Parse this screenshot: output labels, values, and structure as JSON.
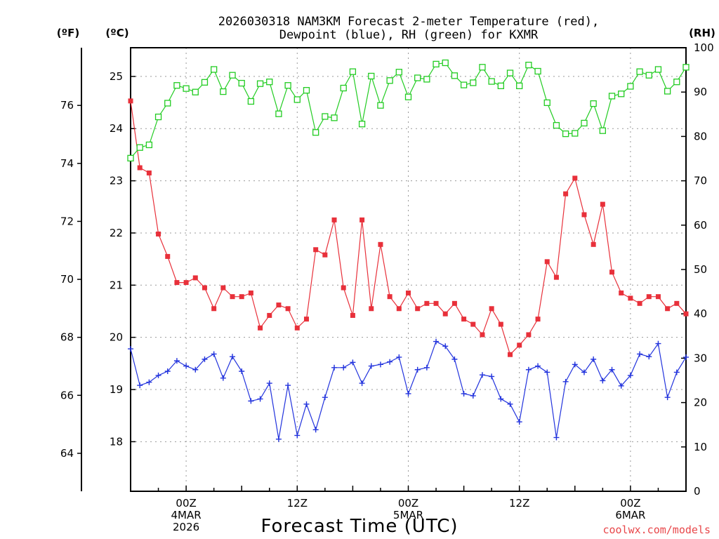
{
  "chart_data": {
    "type": "line",
    "title": "2026030318 NAM3KM Forecast 2-meter Temperature (red), Dewpoint (blue), RH (green) for KXMR",
    "title_lines": [
      "2026030318 NAM3KM Forecast 2-meter Temperature (red),",
      "Dewpoint (blue), RH (green) for KXMR"
    ],
    "xlabel": "Forecast Time (UTC)",
    "credit": "coolwx.com/models",
    "units": {
      "fahrenheit": "(ºF)",
      "celsius": "(ºC)",
      "rh": "(RH)"
    },
    "x_forecast_hours": [
      0,
      60
    ],
    "x_ticks": [
      {
        "hour": 6,
        "lines": [
          "00Z",
          "4MAR",
          "2026"
        ]
      },
      {
        "hour": 18,
        "lines": [
          "12Z"
        ]
      },
      {
        "hour": 30,
        "lines": [
          "00Z",
          "5MAR"
        ]
      },
      {
        "hour": 42,
        "lines": [
          "12Z"
        ]
      },
      {
        "hour": 54,
        "lines": [
          "00Z",
          "6MAR"
        ]
      }
    ],
    "celsius_axis": {
      "range": [
        17.05,
        25.55
      ],
      "ticks": [
        18,
        19,
        20,
        21,
        22,
        23,
        24,
        25
      ]
    },
    "fahrenheit_axis": {
      "range": [
        62.69,
        77.99
      ],
      "ticks": [
        64,
        66,
        68,
        70,
        72,
        74,
        76
      ]
    },
    "rh_axis": {
      "range": [
        0,
        100
      ],
      "ticks": [
        0,
        10,
        20,
        30,
        40,
        50,
        60,
        70,
        80,
        90,
        100
      ]
    },
    "series": [
      {
        "name": "Temperature",
        "unit": "°C",
        "color": "#e8303a",
        "marker": "filled-square",
        "values": [
          24.53,
          23.25,
          23.15,
          21.98,
          21.55,
          21.05,
          21.05,
          21.14,
          20.95,
          20.55,
          20.95,
          20.78,
          20.78,
          20.85,
          20.18,
          20.42,
          20.62,
          20.55,
          20.18,
          20.35,
          21.68,
          21.58,
          22.25,
          20.95,
          20.42,
          22.25,
          20.55,
          21.78,
          20.78,
          20.55,
          20.85,
          20.55,
          20.65,
          20.65,
          20.45,
          20.65,
          20.35,
          20.25,
          20.05,
          20.55,
          20.25,
          19.67,
          19.85,
          20.05,
          20.35,
          21.45,
          21.15,
          22.75,
          23.05,
          22.35,
          21.78,
          22.55,
          21.25,
          20.85,
          20.75,
          20.65,
          20.78,
          20.78,
          20.55,
          20.65,
          20.45
        ]
      },
      {
        "name": "Dewpoint",
        "unit": "°C",
        "color": "#2233dd",
        "marker": "plus",
        "values": [
          19.78,
          19.08,
          19.14,
          19.27,
          19.35,
          19.55,
          19.45,
          19.38,
          19.58,
          19.68,
          19.22,
          19.63,
          19.35,
          18.78,
          18.82,
          19.12,
          18.05,
          19.08,
          18.12,
          18.72,
          18.23,
          18.85,
          19.42,
          19.42,
          19.52,
          19.12,
          19.45,
          19.48,
          19.53,
          19.62,
          18.92,
          19.38,
          19.42,
          19.92,
          19.83,
          19.58,
          18.92,
          18.88,
          19.28,
          19.25,
          18.82,
          18.72,
          18.38,
          19.38,
          19.45,
          19.33,
          18.08,
          19.15,
          19.48,
          19.33,
          19.58,
          19.17,
          19.38,
          19.07,
          19.27,
          19.68,
          19.63,
          19.88,
          18.85,
          19.33,
          19.62
        ]
      },
      {
        "name": "RH",
        "unit": "%",
        "color": "#22cc22",
        "marker": "open-square",
        "values": [
          75.1,
          77.5,
          78.1,
          84.4,
          87.5,
          91.5,
          90.8,
          90.0,
          92.2,
          95.1,
          90.1,
          93.8,
          92.0,
          87.9,
          91.9,
          92.3,
          85.1,
          91.5,
          88.3,
          90.4,
          80.9,
          84.5,
          84.2,
          90.9,
          94.6,
          82.8,
          93.6,
          87.0,
          92.6,
          94.5,
          88.9,
          93.2,
          92.9,
          96.3,
          96.6,
          93.7,
          91.6,
          92.1,
          95.6,
          92.4,
          91.4,
          94.3,
          91.4,
          96.1,
          94.7,
          87.6,
          82.5,
          80.6,
          80.7,
          83.0,
          87.4,
          81.3,
          89.1,
          89.6,
          91.3,
          94.6,
          93.8,
          95.1,
          90.2,
          92.3,
          95.6
        ]
      }
    ]
  }
}
